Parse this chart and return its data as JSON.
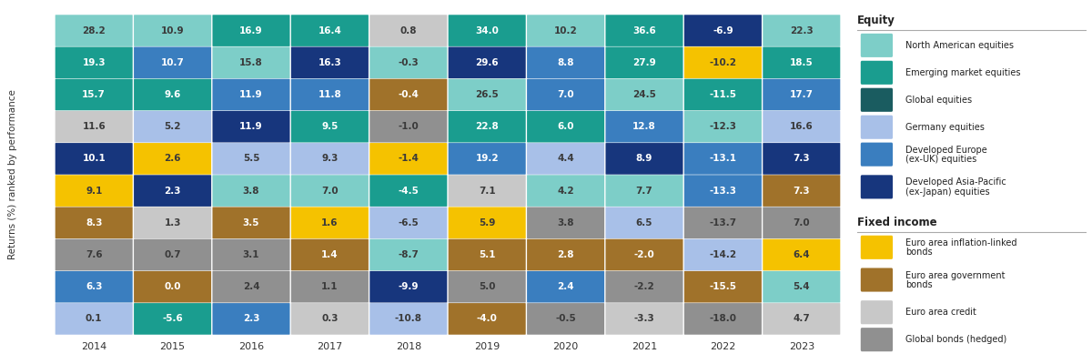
{
  "years": [
    "2014",
    "2015",
    "2016",
    "2017",
    "2018",
    "2019",
    "2020",
    "2021",
    "2022",
    "2023"
  ],
  "table": [
    [
      28.2,
      10.9,
      16.9,
      16.4,
      0.8,
      34.0,
      10.2,
      36.6,
      -6.9,
      22.3
    ],
    [
      19.3,
      10.7,
      15.8,
      16.3,
      -0.3,
      29.6,
      8.8,
      27.9,
      -10.2,
      18.5
    ],
    [
      15.7,
      9.6,
      11.9,
      11.8,
      -0.4,
      26.5,
      7.0,
      24.5,
      -11.5,
      17.7
    ],
    [
      11.6,
      5.2,
      11.9,
      9.5,
      -1.0,
      22.8,
      6.0,
      12.8,
      -12.3,
      16.6
    ],
    [
      10.1,
      2.6,
      5.5,
      9.3,
      -1.4,
      19.2,
      4.4,
      8.9,
      -13.1,
      7.3
    ],
    [
      9.1,
      2.3,
      3.8,
      7.0,
      -4.5,
      7.1,
      4.2,
      7.7,
      -13.3,
      7.3
    ],
    [
      8.3,
      1.3,
      3.5,
      1.6,
      -6.5,
      5.9,
      3.8,
      6.5,
      -13.7,
      7.0
    ],
    [
      7.6,
      0.7,
      3.1,
      1.4,
      -8.7,
      5.1,
      2.8,
      -2.0,
      -14.2,
      6.4
    ],
    [
      6.3,
      0.0,
      2.4,
      1.1,
      -9.9,
      5.0,
      2.4,
      -2.2,
      -15.5,
      5.4
    ],
    [
      0.1,
      -5.6,
      2.3,
      0.3,
      -10.8,
      -4.0,
      -0.5,
      -3.3,
      -18.0,
      4.7
    ]
  ],
  "colors": [
    [
      "#7dcec8",
      "#7dcec8",
      "#1a9d8f",
      "#1a9d8f",
      "#c8c8c8",
      "#1a9d8f",
      "#7dcec8",
      "#1a9d8f",
      "#17367d",
      "#7dcec8"
    ],
    [
      "#1a9d8f",
      "#3a7ebf",
      "#7dcec8",
      "#17367d",
      "#7dcec8",
      "#17367d",
      "#3a7ebf",
      "#1a9d8f",
      "#f5c200",
      "#1a9d8f"
    ],
    [
      "#1a9d8f",
      "#1a9d8f",
      "#3a7ebf",
      "#3a7ebf",
      "#a0722a",
      "#7dcec8",
      "#3a7ebf",
      "#7dcec8",
      "#1a9d8f",
      "#3a7ebf"
    ],
    [
      "#c8c8c8",
      "#a8c0e8",
      "#17367d",
      "#1a9d8f",
      "#909090",
      "#1a9d8f",
      "#1a9d8f",
      "#3a7ebf",
      "#7dcec8",
      "#a8c0e8"
    ],
    [
      "#17367d",
      "#f5c200",
      "#a8c0e8",
      "#a8c0e8",
      "#f5c200",
      "#3a7ebf",
      "#a8c0e8",
      "#17367d",
      "#3a7ebf",
      "#17367d"
    ],
    [
      "#f5c200",
      "#17367d",
      "#7dcec8",
      "#7dcec8",
      "#1a9d8f",
      "#c8c8c8",
      "#7dcec8",
      "#7dcec8",
      "#3a7ebf",
      "#a0722a"
    ],
    [
      "#a0722a",
      "#c8c8c8",
      "#a0722a",
      "#f5c200",
      "#a8c0e8",
      "#f5c200",
      "#909090",
      "#a8c0e8",
      "#909090",
      "#909090"
    ],
    [
      "#909090",
      "#909090",
      "#909090",
      "#a0722a",
      "#7dcec8",
      "#a0722a",
      "#a0722a",
      "#a0722a",
      "#a8c0e8",
      "#f5c200"
    ],
    [
      "#3a7ebf",
      "#a0722a",
      "#909090",
      "#909090",
      "#17367d",
      "#909090",
      "#3a7ebf",
      "#909090",
      "#a0722a",
      "#7dcec8"
    ],
    [
      "#a8c0e8",
      "#1a9d8f",
      "#3a7ebf",
      "#c8c8c8",
      "#a8c0e8",
      "#a0722a",
      "#909090",
      "#c8c8c8",
      "#909090",
      "#c8c8c8"
    ]
  ],
  "text_colors": [
    [
      "#3a3a3a",
      "#3a3a3a",
      "#ffffff",
      "#ffffff",
      "#3a3a3a",
      "#ffffff",
      "#3a3a3a",
      "#ffffff",
      "#ffffff",
      "#3a3a3a"
    ],
    [
      "#ffffff",
      "#ffffff",
      "#3a3a3a",
      "#ffffff",
      "#3a3a3a",
      "#ffffff",
      "#ffffff",
      "#ffffff",
      "#3a3a3a",
      "#ffffff"
    ],
    [
      "#ffffff",
      "#ffffff",
      "#ffffff",
      "#ffffff",
      "#ffffff",
      "#3a3a3a",
      "#ffffff",
      "#3a3a3a",
      "#ffffff",
      "#ffffff"
    ],
    [
      "#3a3a3a",
      "#3a3a3a",
      "#ffffff",
      "#ffffff",
      "#3a3a3a",
      "#ffffff",
      "#ffffff",
      "#ffffff",
      "#3a3a3a",
      "#3a3a3a"
    ],
    [
      "#ffffff",
      "#3a3a3a",
      "#3a3a3a",
      "#3a3a3a",
      "#3a3a3a",
      "#ffffff",
      "#3a3a3a",
      "#ffffff",
      "#ffffff",
      "#ffffff"
    ],
    [
      "#3a3a3a",
      "#ffffff",
      "#3a3a3a",
      "#3a3a3a",
      "#ffffff",
      "#3a3a3a",
      "#3a3a3a",
      "#3a3a3a",
      "#ffffff",
      "#ffffff"
    ],
    [
      "#ffffff",
      "#3a3a3a",
      "#ffffff",
      "#3a3a3a",
      "#3a3a3a",
      "#3a3a3a",
      "#3a3a3a",
      "#3a3a3a",
      "#3a3a3a",
      "#3a3a3a"
    ],
    [
      "#3a3a3a",
      "#3a3a3a",
      "#3a3a3a",
      "#ffffff",
      "#3a3a3a",
      "#ffffff",
      "#ffffff",
      "#ffffff",
      "#3a3a3a",
      "#3a3a3a"
    ],
    [
      "#ffffff",
      "#ffffff",
      "#3a3a3a",
      "#3a3a3a",
      "#ffffff",
      "#3a3a3a",
      "#ffffff",
      "#3a3a3a",
      "#ffffff",
      "#3a3a3a"
    ],
    [
      "#3a3a3a",
      "#ffffff",
      "#ffffff",
      "#3a3a3a",
      "#3a3a3a",
      "#ffffff",
      "#3a3a3a",
      "#3a3a3a",
      "#3a3a3a",
      "#3a3a3a"
    ]
  ],
  "ylabel": "Returns (%) ranked by performance",
  "legend_equity_title": "Equity",
  "legend_fi_title": "Fixed income",
  "legend_equity": [
    {
      "label": "North American equities",
      "color": "#7dcec8"
    },
    {
      "label": "Emerging market equities",
      "color": "#1a9d8f"
    },
    {
      "label": "Global equities",
      "color": "#1a5c60"
    },
    {
      "label": "Germany equities",
      "color": "#a8c0e8"
    },
    {
      "label": "Developed Europe\n(ex-UK) equities",
      "color": "#3a7ebf"
    },
    {
      "label": "Developed Asia-Pacific\n(ex-Japan) equities",
      "color": "#17367d"
    }
  ],
  "legend_fi": [
    {
      "label": "Euro area inflation-linked\nbonds",
      "color": "#f5c200"
    },
    {
      "label": "Euro area government\nbonds",
      "color": "#a0722a"
    },
    {
      "label": "Euro area credit",
      "color": "#c8c8c8"
    },
    {
      "label": "Global bonds (hedged)",
      "color": "#909090"
    }
  ],
  "background_color": "#ffffff"
}
